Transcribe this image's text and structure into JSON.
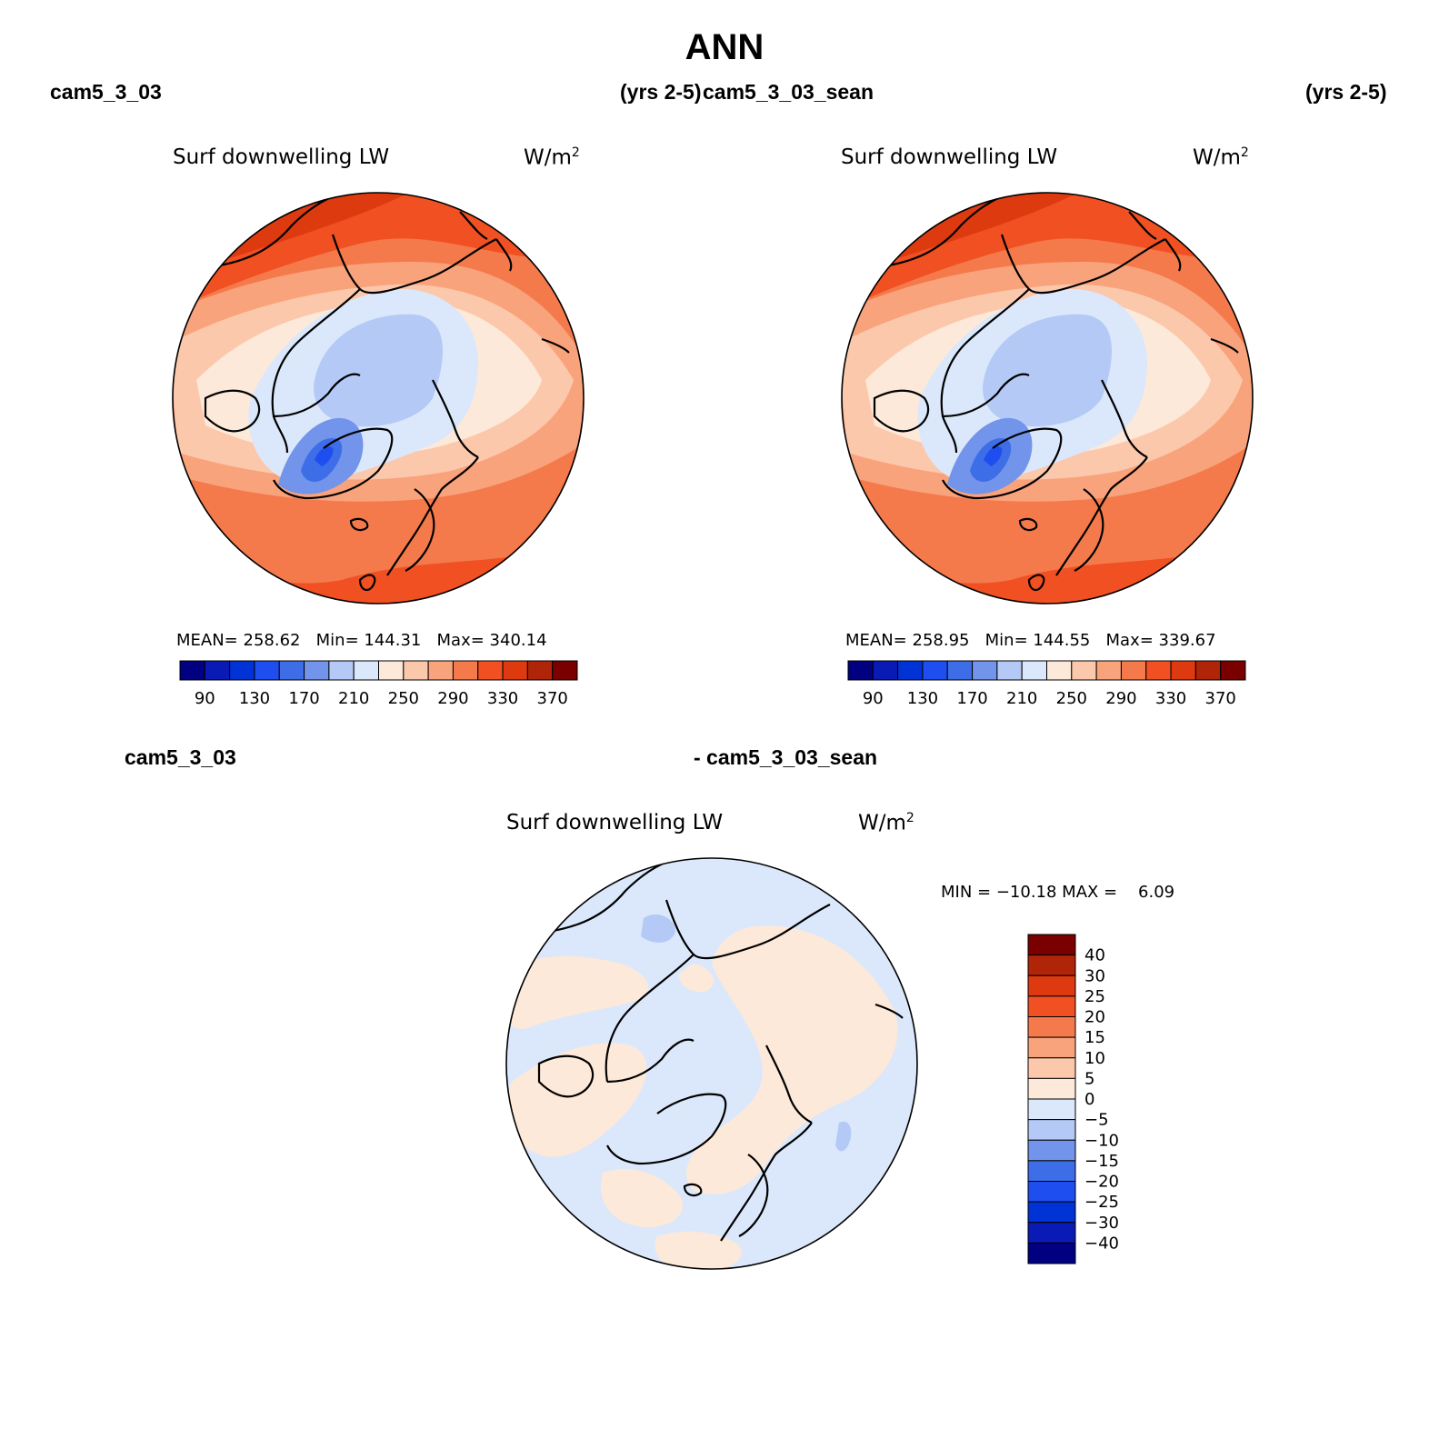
{
  "title": "ANN",
  "panels": [
    {
      "case": "cam5_3_03",
      "years": "(yrs 2-5)",
      "variable": "Surf downwelling LW",
      "units": "W/m",
      "units_exp": "2",
      "stats": "MEAN= 258.62   Min= 144.31   Max= 340.14",
      "colorbar": {
        "colors": [
          "#000080",
          "#0a1ab4",
          "#0033d6",
          "#1e4ef0",
          "#3e6de8",
          "#7294ea",
          "#b4c9f6",
          "#dbe8fb",
          "#fde9d9",
          "#fcc8ac",
          "#f9a37c",
          "#f47a4c",
          "#f15022",
          "#dd3a10",
          "#b02408",
          "#7a0000"
        ],
        "labels": [
          "90",
          "130",
          "170",
          "210",
          "250",
          "290",
          "330",
          "370"
        ]
      }
    },
    {
      "case": "cam5_3_03_sean",
      "years": "(yrs 2-5)",
      "variable": "Surf downwelling LW",
      "units": "W/m",
      "units_exp": "2",
      "stats": "MEAN= 258.95   Min= 144.55   Max= 339.67",
      "colorbar": {
        "colors": [
          "#000080",
          "#0a1ab4",
          "#0033d6",
          "#1e4ef0",
          "#3e6de8",
          "#7294ea",
          "#b4c9f6",
          "#dbe8fb",
          "#fde9d9",
          "#fcc8ac",
          "#f9a37c",
          "#f47a4c",
          "#f15022",
          "#dd3a10",
          "#b02408",
          "#7a0000"
        ],
        "labels": [
          "90",
          "130",
          "170",
          "210",
          "250",
          "290",
          "330",
          "370"
        ]
      }
    }
  ],
  "diff": {
    "case_a": "cam5_3_03",
    "case_b": "- cam5_3_03_sean",
    "variable": "Surf downwelling LW",
    "units": "W/m",
    "units_exp": "2",
    "stats": "MIN = −10.18 MAX =    6.09",
    "colorbar": {
      "colors_top_to_bottom": [
        "#7a0000",
        "#b02408",
        "#dd3a10",
        "#f15022",
        "#f47a4c",
        "#f9a37c",
        "#fcc8ac",
        "#fde9d9",
        "#dbe8fb",
        "#b4c9f6",
        "#7294ea",
        "#3e6de8",
        "#1e4ef0",
        "#0033d6",
        "#0a1ab4",
        "#000080"
      ],
      "labels": [
        "40",
        "30",
        "25",
        "20",
        "15",
        "10",
        "5",
        "0",
        "−5",
        "−10",
        "−15",
        "−20",
        "−25",
        "−30",
        "−40"
      ]
    }
  },
  "chart_data": {
    "type": "heatmap",
    "projection": "north polar stereographic",
    "title": "ANN",
    "variable": "Surf downwelling LW",
    "units": "W/m^2",
    "maps": [
      {
        "name": "cam5_3_03",
        "mean": 258.62,
        "min": 144.31,
        "max": 340.14,
        "levels": [
          90,
          130,
          170,
          210,
          250,
          290,
          330,
          370
        ]
      },
      {
        "name": "cam5_3_03_sean",
        "mean": 258.95,
        "min": 144.55,
        "max": 339.67,
        "levels": [
          90,
          130,
          170,
          210,
          250,
          290,
          330,
          370
        ]
      },
      {
        "name": "cam5_3_03 - cam5_3_03_sean",
        "min": -10.18,
        "max": 6.09,
        "levels": [
          -40,
          -30,
          -25,
          -20,
          -15,
          -10,
          -5,
          0,
          5,
          10,
          15,
          20,
          25,
          30,
          40
        ]
      }
    ]
  }
}
